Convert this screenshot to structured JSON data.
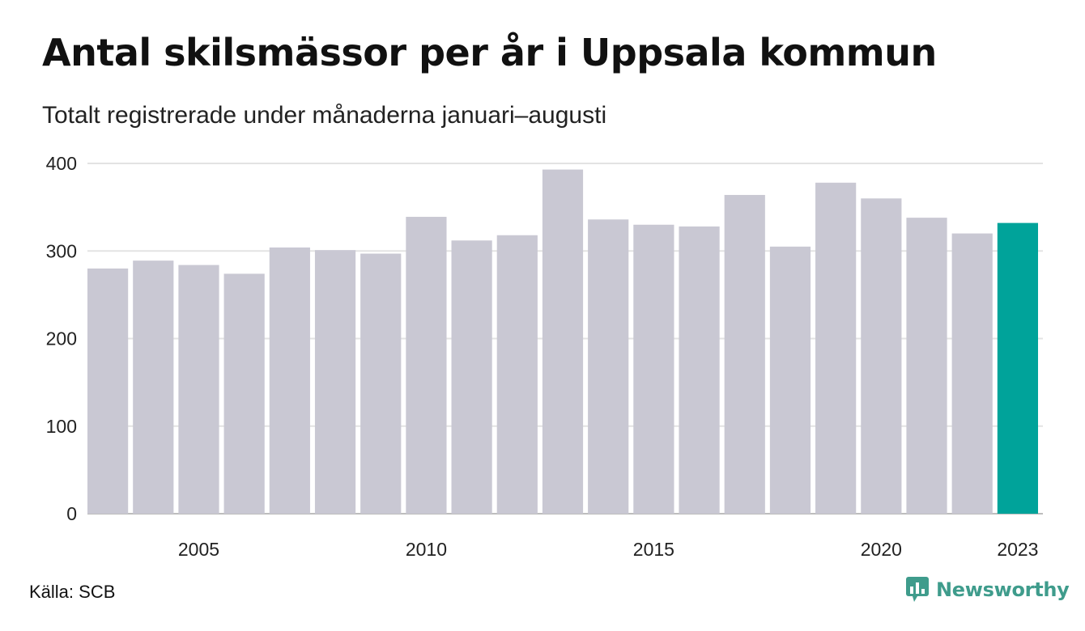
{
  "title": "Antal skilsmässor per år i Uppsala kommun",
  "subtitle": "Totalt registrerade under månaderna januari–augusti",
  "source": "Källa: SCB",
  "brand": "Newsworthy",
  "colors": {
    "bar": "#c9c8d3",
    "highlight": "#00a39a",
    "grid": "#e3e3e3",
    "axis": "#bdbdbd",
    "brand": "#3f9c8c"
  },
  "chart_data": {
    "type": "bar",
    "title": "Antal skilsmässor per år i Uppsala kommun",
    "subtitle": "Totalt registrerade under månaderna januari–augusti",
    "x": [
      2003,
      2004,
      2005,
      2006,
      2007,
      2008,
      2009,
      2010,
      2011,
      2012,
      2013,
      2014,
      2015,
      2016,
      2017,
      2018,
      2019,
      2020,
      2021,
      2022,
      2023
    ],
    "values": [
      280,
      289,
      284,
      274,
      304,
      301,
      297,
      339,
      312,
      318,
      393,
      336,
      330,
      328,
      364,
      305,
      378,
      360,
      338,
      320,
      332
    ],
    "highlight": [
      2023
    ],
    "ylim": [
      0,
      400
    ],
    "yticks": [
      0,
      100,
      200,
      300,
      400
    ],
    "xticks": [
      2005,
      2010,
      2015,
      2020,
      2023
    ],
    "grid": true
  }
}
